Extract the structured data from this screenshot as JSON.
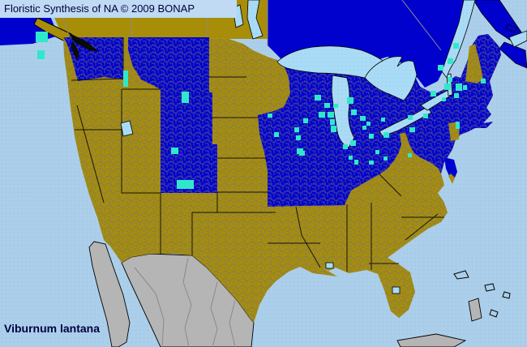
{
  "header": {
    "title": "Floristic Synthesis of NA © 2009 BONAP"
  },
  "footer": {
    "species": "Viburnum lantana"
  },
  "legend": {
    "state_present_color": "#0101CE",
    "county_present_color": "#2FE8CC",
    "state_absent_color": "#A88E08",
    "outside_us_land_color": "#B5B5B5",
    "ocean_color": "#ABCFEA",
    "ocean_stipple_color": "#9ABFDD",
    "lake_color": "#A9DBF6",
    "lake_stipple_color": "#92CBEE",
    "banner_bg_color": "#BFDAF2",
    "text_color": "#000040",
    "county_line_color": "#757575",
    "province_line_color": "#8A8A8A",
    "state_line_color": "#000000"
  },
  "map": {
    "regions_present_state": [
      "British Columbia",
      "Ontario",
      "Quebec",
      "New Brunswick",
      "Nova Scotia",
      "Washington",
      "Montana",
      "Wyoming",
      "Colorado",
      "Iowa",
      "Missouri",
      "Wisconsin",
      "Michigan",
      "Illinois",
      "Indiana",
      "Ohio",
      "Kentucky",
      "Pennsylvania",
      "New York",
      "Maryland",
      "Delaware",
      "Vermont",
      "Massachusetts",
      "Connecticut",
      "Rhode Island",
      "Maine",
      "New Jersey (north)"
    ],
    "regions_absent": [
      "Alberta",
      "Saskatchewan",
      "Manitoba",
      "Oregon",
      "California",
      "Nevada",
      "Idaho",
      "Utah",
      "Arizona",
      "New Mexico",
      "North Dakota",
      "South Dakota",
      "Minnesota",
      "Nebraska",
      "Kansas",
      "Oklahoma",
      "Texas",
      "Arkansas",
      "Louisiana",
      "Mississippi",
      "Alabama",
      "Tennessee",
      "Georgia",
      "Florida",
      "South Carolina",
      "North Carolina",
      "Virginia",
      "West Virginia",
      "New Hampshire",
      "New Jersey (south)"
    ],
    "county_markers": [
      [
        44,
        39,
        15,
        13
      ],
      [
        46,
        62,
        9,
        11
      ],
      [
        152,
        87,
        6,
        20
      ],
      [
        224,
        113,
        9,
        14
      ],
      [
        211,
        182,
        9,
        8
      ],
      [
        218,
        222,
        21,
        11
      ],
      [
        330,
        140,
        6,
        5
      ],
      [
        338,
        163,
        6,
        6
      ],
      [
        363,
        157,
        6,
        6
      ],
      [
        366,
        183,
        8,
        7
      ],
      [
        365,
        167,
        6,
        6
      ],
      [
        369,
        186,
        7,
        6
      ],
      [
        388,
        117,
        8,
        7
      ],
      [
        400,
        127,
        7,
        6
      ],
      [
        393,
        138,
        8,
        7
      ],
      [
        404,
        138,
        8,
        7
      ],
      [
        407,
        147,
        6,
        7
      ],
      [
        408,
        155,
        7,
        8
      ],
      [
        411,
        128,
        6,
        5
      ],
      [
        374,
        146,
        6,
        6
      ],
      [
        428,
        120,
        8,
        8
      ],
      [
        433,
        135,
        7,
        7
      ],
      [
        444,
        143,
        7,
        6
      ],
      [
        432,
        173,
        7,
        7
      ],
      [
        452,
        150,
        5,
        5
      ],
      [
        423,
        178,
        6,
        6
      ],
      [
        430,
        192,
        5,
        5
      ],
      [
        455,
        165,
        6,
        6
      ],
      [
        473,
        163,
        7,
        7
      ],
      [
        463,
        185,
        5,
        5
      ],
      [
        447,
        155,
        5,
        5
      ],
      [
        470,
        145,
        5,
        5
      ],
      [
        437,
        197,
        5,
        6
      ],
      [
        455,
        198,
        6,
        5
      ],
      [
        473,
        193,
        5,
        5
      ],
      [
        505,
        157,
        7,
        6
      ],
      [
        522,
        140,
        6,
        6
      ],
      [
        503,
        142,
        6,
        6
      ],
      [
        503,
        189,
        5,
        5
      ],
      [
        531,
        112,
        7,
        7
      ],
      [
        540,
        80,
        7,
        7
      ],
      [
        545,
        120,
        5,
        5
      ],
      [
        552,
        72,
        7,
        7
      ],
      [
        559,
        53,
        7,
        7
      ],
      [
        552,
        95,
        6,
        6
      ],
      [
        548,
        103,
        8,
        8
      ],
      [
        562,
        103,
        8,
        9
      ],
      [
        571,
        105,
        5,
        6
      ],
      [
        560,
        115,
        6,
        6
      ],
      [
        593,
        97,
        6,
        6
      ],
      [
        562,
        150,
        5,
        9
      ]
    ]
  }
}
